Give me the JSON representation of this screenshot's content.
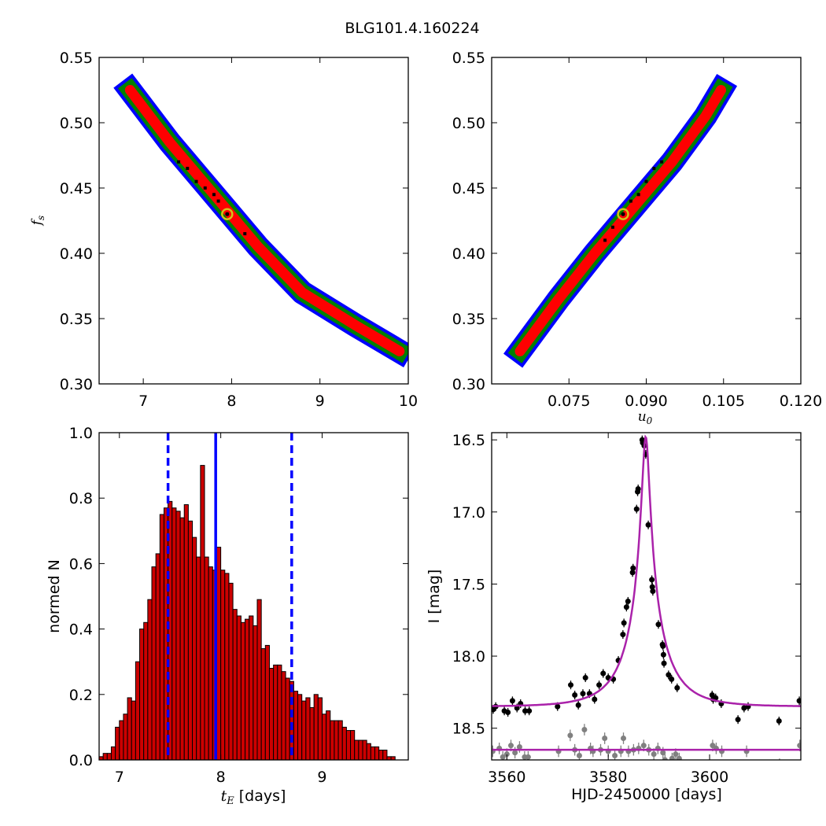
{
  "figure_title": "BLG101.4.160224",
  "colors": {
    "sigma3": "#0000ff",
    "sigma2": "#008000",
    "sigma1": "#ff0000",
    "best_chain": "#000000",
    "best_marker": "#d4c21a",
    "hist_bar": "#cc0000",
    "hist_line": "#0000ff",
    "model": "#aa22aa",
    "data_main": "#000000",
    "data_secondary": "#808080"
  },
  "chart_data": [
    {
      "id": "tE-fs",
      "type": "heatmap",
      "title": "",
      "xlabel": "",
      "ylabel": "f_s",
      "xlim": [
        6.5,
        10.0
      ],
      "ylim": [
        0.3,
        0.55
      ],
      "xticks": [
        "7",
        "8",
        "9",
        "10"
      ],
      "xtick_values": [
        7,
        8,
        9,
        10
      ],
      "yticks": [
        "0.30",
        "0.35",
        "0.40",
        "0.45",
        "0.50",
        "0.55"
      ],
      "ytick_values": [
        0.3,
        0.35,
        0.4,
        0.45,
        0.5,
        0.55
      ],
      "contour_regions": [
        "3-sigma",
        "2-sigma",
        "1-sigma"
      ],
      "ridge": [
        [
          6.85,
          0.525
        ],
        [
          7.3,
          0.485
        ],
        [
          7.8,
          0.445
        ],
        [
          8.3,
          0.405
        ],
        [
          8.8,
          0.37
        ],
        [
          9.4,
          0.345
        ],
        [
          9.9,
          0.325
        ]
      ],
      "best_fit": {
        "x": 7.95,
        "y": 0.43
      },
      "best_points": [
        [
          7.4,
          0.47
        ],
        [
          7.5,
          0.465
        ],
        [
          7.6,
          0.455
        ],
        [
          7.7,
          0.45
        ],
        [
          7.8,
          0.445
        ],
        [
          7.85,
          0.44
        ],
        [
          7.95,
          0.43
        ],
        [
          8.15,
          0.415
        ]
      ]
    },
    {
      "id": "u0-fs",
      "type": "heatmap",
      "title": "",
      "xlabel": "u_0",
      "ylabel": "",
      "xlim": [
        0.06,
        0.12
      ],
      "ylim": [
        0.3,
        0.55
      ],
      "xticks": [
        "0.075",
        "0.090",
        "0.105",
        "0.120"
      ],
      "xtick_values": [
        0.075,
        0.09,
        0.105,
        0.12
      ],
      "yticks": [
        "0.30",
        "0.35",
        "0.40",
        "0.45",
        "0.50",
        "0.55"
      ],
      "ytick_values": [
        0.3,
        0.35,
        0.4,
        0.45,
        0.5,
        0.55
      ],
      "contour_regions": [
        "3-sigma",
        "2-sigma",
        "1-sigma"
      ],
      "ridge": [
        [
          0.0655,
          0.325
        ],
        [
          0.073,
          0.365
        ],
        [
          0.08,
          0.4
        ],
        [
          0.0875,
          0.435
        ],
        [
          0.095,
          0.47
        ],
        [
          0.1015,
          0.505
        ],
        [
          0.1045,
          0.525
        ]
      ],
      "best_fit": {
        "x": 0.0855,
        "y": 0.43
      },
      "best_points": [
        [
          0.082,
          0.41
        ],
        [
          0.0835,
          0.42
        ],
        [
          0.0855,
          0.43
        ],
        [
          0.087,
          0.44
        ],
        [
          0.0885,
          0.445
        ],
        [
          0.09,
          0.455
        ],
        [
          0.0915,
          0.465
        ],
        [
          0.093,
          0.47
        ]
      ]
    },
    {
      "id": "tE-hist",
      "type": "bar",
      "title": "",
      "xlabel": "[days]",
      "xlabel_math": "t_E",
      "ylabel": "normed N",
      "xlim": [
        6.8,
        9.85
      ],
      "ylim": [
        0.0,
        1.0
      ],
      "xticks": [
        "7",
        "8",
        "9"
      ],
      "xtick_values": [
        7,
        8,
        9
      ],
      "yticks": [
        "0.0",
        "0.2",
        "0.4",
        "0.6",
        "0.8",
        "1.0"
      ],
      "ytick_values": [
        0.0,
        0.2,
        0.4,
        0.6,
        0.8,
        1.0
      ],
      "bin_start": 6.8,
      "bin_width": 0.04,
      "values": [
        0.01,
        0.02,
        0.02,
        0.04,
        0.1,
        0.12,
        0.14,
        0.19,
        0.18,
        0.3,
        0.4,
        0.42,
        0.49,
        0.59,
        0.63,
        0.75,
        0.77,
        0.79,
        0.77,
        0.76,
        0.74,
        0.78,
        0.73,
        0.68,
        0.62,
        0.9,
        0.62,
        0.59,
        0.58,
        0.65,
        0.58,
        0.57,
        0.54,
        0.46,
        0.44,
        0.42,
        0.43,
        0.44,
        0.41,
        0.49,
        0.34,
        0.35,
        0.28,
        0.29,
        0.29,
        0.27,
        0.25,
        0.24,
        0.21,
        0.2,
        0.18,
        0.19,
        0.16,
        0.2,
        0.19,
        0.14,
        0.15,
        0.12,
        0.12,
        0.12,
        0.1,
        0.09,
        0.09,
        0.06,
        0.06,
        0.06,
        0.05,
        0.04,
        0.04,
        0.03,
        0.03,
        0.01,
        0.01
      ],
      "vlines": [
        {
          "x": 7.48,
          "style": "dashed"
        },
        {
          "x": 7.95,
          "style": "solid"
        },
        {
          "x": 8.7,
          "style": "dashed"
        }
      ]
    },
    {
      "id": "lightcurve",
      "type": "scatter",
      "title": "",
      "xlabel": "HJD-2450000 [days]",
      "ylabel": "I [mag]",
      "xlim": [
        3557,
        3618
      ],
      "ylim": [
        18.72,
        16.45
      ],
      "y_inverted": true,
      "xticks": [
        "3560",
        "3580",
        "3600"
      ],
      "xtick_values": [
        3560,
        3580,
        3600
      ],
      "yticks": [
        "16.5",
        "17.0",
        "17.5",
        "18.0",
        "18.5"
      ],
      "ytick_values": [
        16.5,
        17.0,
        17.5,
        18.0,
        18.5
      ],
      "model": {
        "t0": 3587.4,
        "tE": 7.95,
        "u0": 0.0855,
        "fs": 0.43,
        "base_mag": 18.35
      },
      "baseline_mag": 18.65,
      "series": [
        {
          "role": "main",
          "points": [
            [
              3557.3,
              18.37,
              0.03
            ],
            [
              3557.8,
              18.35,
              0.03
            ],
            [
              3559.5,
              18.38,
              0.03
            ],
            [
              3560.2,
              18.39,
              0.03
            ],
            [
              3561.1,
              18.31,
              0.03
            ],
            [
              3562.0,
              18.36,
              0.03
            ],
            [
              3562.7,
              18.33,
              0.03
            ],
            [
              3563.6,
              18.38,
              0.03
            ],
            [
              3564.4,
              18.38,
              0.03
            ],
            [
              3570.0,
              18.35,
              0.03
            ],
            [
              3572.6,
              18.2,
              0.03
            ],
            [
              3573.4,
              18.27,
              0.03
            ],
            [
              3574.1,
              18.34,
              0.03
            ],
            [
              3575.0,
              18.26,
              0.03
            ],
            [
              3575.5,
              18.15,
              0.03
            ],
            [
              3576.3,
              18.26,
              0.03
            ],
            [
              3577.3,
              18.3,
              0.03
            ],
            [
              3578.2,
              18.2,
              0.03
            ],
            [
              3579.0,
              18.12,
              0.03
            ],
            [
              3580.0,
              18.15,
              0.03
            ],
            [
              3581.0,
              18.16,
              0.03
            ],
            [
              3582.0,
              18.03,
              0.03
            ],
            [
              3582.9,
              17.85,
              0.03
            ],
            [
              3583.1,
              17.77,
              0.03
            ],
            [
              3583.6,
              17.66,
              0.03
            ],
            [
              3583.9,
              17.62,
              0.03
            ],
            [
              3584.8,
              17.42,
              0.03
            ],
            [
              3584.9,
              17.39,
              0.03
            ],
            [
              3585.6,
              16.98,
              0.03
            ],
            [
              3585.8,
              16.86,
              0.03
            ],
            [
              3585.9,
              16.84,
              0.03
            ],
            [
              3586.7,
              16.5,
              0.03
            ],
            [
              3586.8,
              16.52,
              0.03
            ],
            [
              3587.1,
              16.54,
              0.03
            ],
            [
              3587.4,
              16.6,
              0.03
            ],
            [
              3587.9,
              17.09,
              0.03
            ],
            [
              3588.6,
              17.47,
              0.03
            ],
            [
              3588.7,
              17.52,
              0.03
            ],
            [
              3588.8,
              17.55,
              0.03
            ],
            [
              3589.9,
              17.78,
              0.03
            ],
            [
              3590.7,
              17.92,
              0.03
            ],
            [
              3590.8,
              17.93,
              0.03
            ],
            [
              3590.9,
              17.99,
              0.03
            ],
            [
              3591.0,
              18.05,
              0.03
            ],
            [
              3591.9,
              18.13,
              0.03
            ],
            [
              3592.5,
              18.16,
              0.03
            ],
            [
              3593.6,
              18.22,
              0.03
            ],
            [
              3600.5,
              18.27,
              0.03
            ],
            [
              3600.7,
              18.3,
              0.03
            ],
            [
              3601.2,
              18.29,
              0.03
            ],
            [
              3602.3,
              18.33,
              0.03
            ],
            [
              3605.6,
              18.44,
              0.03
            ],
            [
              3606.8,
              18.36,
              0.03
            ],
            [
              3607.6,
              18.35,
              0.03
            ],
            [
              3613.7,
              18.45,
              0.03
            ],
            [
              3617.7,
              18.31,
              0.03
            ]
          ]
        },
        {
          "role": "secondary",
          "points": [
            [
              3557.2,
              18.66,
              0.04
            ],
            [
              3558.5,
              18.64,
              0.04
            ],
            [
              3559.2,
              18.7,
              0.04
            ],
            [
              3560.0,
              18.68,
              0.04
            ],
            [
              3560.8,
              18.62,
              0.04
            ],
            [
              3561.6,
              18.67,
              0.04
            ],
            [
              3562.5,
              18.63,
              0.04
            ],
            [
              3563.5,
              18.7,
              0.04
            ],
            [
              3564.2,
              18.7,
              0.04
            ],
            [
              3570.2,
              18.66,
              0.04
            ],
            [
              3572.5,
              18.55,
              0.04
            ],
            [
              3573.4,
              18.65,
              0.04
            ],
            [
              3574.3,
              18.69,
              0.04
            ],
            [
              3575.3,
              18.51,
              0.04
            ],
            [
              3576.5,
              18.64,
              0.04
            ],
            [
              3577.0,
              18.66,
              0.04
            ],
            [
              3578.5,
              18.65,
              0.04
            ],
            [
              3579.3,
              18.57,
              0.04
            ],
            [
              3580.0,
              18.66,
              0.04
            ],
            [
              3581.3,
              18.69,
              0.04
            ],
            [
              3582.5,
              18.66,
              0.04
            ],
            [
              3583.0,
              18.57,
              0.04
            ],
            [
              3584.0,
              18.66,
              0.04
            ],
            [
              3585.0,
              18.65,
              0.04
            ],
            [
              3586.0,
              18.64,
              0.04
            ],
            [
              3587.0,
              18.62,
              0.04
            ],
            [
              3588.0,
              18.65,
              0.04
            ],
            [
              3589.0,
              18.68,
              0.04
            ],
            [
              3589.8,
              18.64,
              0.04
            ],
            [
              3590.8,
              18.67,
              0.04
            ],
            [
              3591.2,
              18.72,
              0.04
            ],
            [
              3591.7,
              18.78,
              0.04
            ],
            [
              3592.6,
              18.71,
              0.04
            ],
            [
              3593.3,
              18.68,
              0.04
            ],
            [
              3594.0,
              18.71,
              0.04
            ],
            [
              3600.6,
              18.62,
              0.04
            ],
            [
              3601.3,
              18.64,
              0.04
            ],
            [
              3602.4,
              18.66,
              0.04
            ],
            [
              3605.5,
              18.76,
              0.04
            ],
            [
              3607.3,
              18.66,
              0.04
            ],
            [
              3613.8,
              18.75,
              0.04
            ],
            [
              3617.8,
              18.62,
              0.04
            ]
          ]
        }
      ]
    }
  ]
}
